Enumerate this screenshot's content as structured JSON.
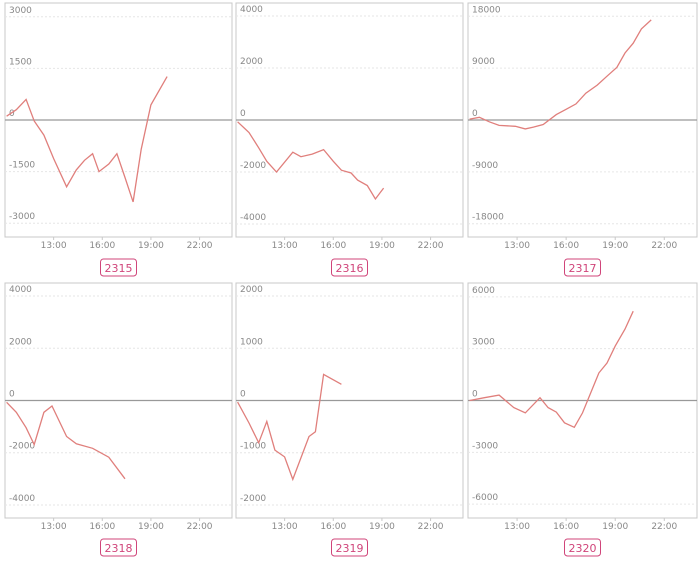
{
  "chart_data": [
    {
      "type": "line",
      "title": "2315",
      "color": "#e07f7c",
      "grid": true,
      "x": [
        10.1,
        10.7,
        11.3,
        11.8,
        12.4,
        13,
        13.8,
        14.4,
        14.9,
        15.4,
        15.8,
        16.4,
        16.9,
        17.4,
        17.9,
        18.4,
        19,
        20
      ],
      "values": [
        110,
        300,
        600,
        -30,
        -440,
        -1120,
        -1940,
        -1450,
        -1170,
        -980,
        -1500,
        -1280,
        -980,
        -1670,
        -2380,
        -850,
        440,
        1260
      ],
      "xlim": [
        10,
        24
      ],
      "xticks": [
        {
          "value": 13,
          "label": "13:00"
        },
        {
          "value": 16,
          "label": "16:00"
        },
        {
          "value": 19,
          "label": "19:00"
        },
        {
          "value": 22,
          "label": "22:00"
        }
      ],
      "ylim": [
        -3400,
        3400
      ],
      "yticks": [
        3000,
        1500,
        0,
        -1500,
        -3000
      ]
    },
    {
      "type": "line",
      "title": "2316",
      "color": "#e07f7c",
      "grid": true,
      "x": [
        10.1,
        10.8,
        11.4,
        11.9,
        12.5,
        13.5,
        14,
        14.7,
        15.4,
        16,
        16.5,
        17.1,
        17.5,
        18.1,
        18.6,
        19.1
      ],
      "values": [
        -70,
        -480,
        -1070,
        -1590,
        -2000,
        -1240,
        -1410,
        -1310,
        -1140,
        -1590,
        -1930,
        -2040,
        -2310,
        -2520,
        -3040,
        -2620
      ],
      "xlim": [
        10,
        24
      ],
      "xticks": [
        {
          "value": 13,
          "label": "13:00"
        },
        {
          "value": 16,
          "label": "16:00"
        },
        {
          "value": 19,
          "label": "19:00"
        },
        {
          "value": 22,
          "label": "22:00"
        }
      ],
      "ylim": [
        -4500,
        4500
      ],
      "yticks": [
        4000,
        2000,
        0,
        -2000,
        -4000
      ]
    },
    {
      "type": "line",
      "title": "2317",
      "color": "#e07f7c",
      "grid": true,
      "x": [
        10.1,
        10.7,
        11.3,
        11.9,
        12.9,
        13.5,
        14,
        14.6,
        15.4,
        16,
        16.6,
        17.2,
        17.9,
        18.5,
        19.1,
        19.6,
        20.1,
        20.6,
        21.2
      ],
      "values": [
        160,
        470,
        -310,
        -930,
        -1090,
        -1550,
        -1240,
        -780,
        930,
        1860,
        2790,
        4650,
        6050,
        7600,
        9150,
        11630,
        13330,
        15810,
        17360
      ],
      "xlim": [
        10,
        24
      ],
      "xticks": [
        {
          "value": 13,
          "label": "13:00"
        },
        {
          "value": 16,
          "label": "16:00"
        },
        {
          "value": 19,
          "label": "19:00"
        },
        {
          "value": 22,
          "label": "22:00"
        }
      ],
      "ylim": [
        -20300,
        20300
      ],
      "yticks": [
        18000,
        9000,
        0,
        -9000,
        -18000
      ]
    },
    {
      "type": "line",
      "title": "2318",
      "color": "#e07f7c",
      "grid": true,
      "x": [
        10.1,
        10.7,
        11.3,
        11.8,
        12.4,
        12.9,
        13.8,
        14.4,
        15.4,
        16.4,
        17.4
      ],
      "values": [
        -70,
        -450,
        -1040,
        -1690,
        -450,
        -210,
        -1380,
        -1660,
        -1830,
        -2170,
        -3000
      ],
      "xlim": [
        10,
        24
      ],
      "xticks": [
        {
          "value": 13,
          "label": "13:00"
        },
        {
          "value": 16,
          "label": "16:00"
        },
        {
          "value": 19,
          "label": "19:00"
        },
        {
          "value": 22,
          "label": "22:00"
        }
      ],
      "ylim": [
        -4500,
        4500
      ],
      "yticks": [
        4000,
        2000,
        0,
        -2000,
        -4000
      ]
    },
    {
      "type": "line",
      "title": "2319",
      "color": "#e07f7c",
      "grid": true,
      "x": [
        10.1,
        10.8,
        11.4,
        11.9,
        12.4,
        13,
        13.5,
        14.5,
        14.9,
        15.4,
        16.5
      ],
      "values": [
        -30,
        -430,
        -810,
        -400,
        -950,
        -1080,
        -1510,
        -690,
        -600,
        500,
        310
      ],
      "xlim": [
        10,
        24
      ],
      "xticks": [
        {
          "value": 13,
          "label": "13:00"
        },
        {
          "value": 16,
          "label": "16:00"
        },
        {
          "value": 19,
          "label": "19:00"
        },
        {
          "value": 22,
          "label": "22:00"
        }
      ],
      "ylim": [
        -2250,
        2250
      ],
      "yticks": [
        2000,
        1000,
        0,
        -1000,
        -2000
      ]
    },
    {
      "type": "line",
      "title": "2320",
      "color": "#e07f7c",
      "grid": true,
      "x": [
        10.1,
        11,
        11.9,
        12.8,
        13.5,
        14.4,
        14.9,
        15.4,
        15.9,
        16.5,
        17,
        18,
        18.5,
        19,
        19.6,
        20.1
      ],
      "values": [
        0,
        160,
        310,
        -410,
        -720,
        160,
        -410,
        -670,
        -1290,
        -1550,
        -720,
        1600,
        2170,
        3150,
        4130,
        5170
      ],
      "xlim": [
        10,
        24
      ],
      "xticks": [
        {
          "value": 13,
          "label": "13:00"
        },
        {
          "value": 16,
          "label": "16:00"
        },
        {
          "value": 19,
          "label": "19:00"
        },
        {
          "value": 22,
          "label": "22:00"
        }
      ],
      "ylim": [
        -6800,
        6800
      ],
      "yticks": [
        6000,
        3000,
        0,
        -3000,
        -6000
      ]
    }
  ]
}
